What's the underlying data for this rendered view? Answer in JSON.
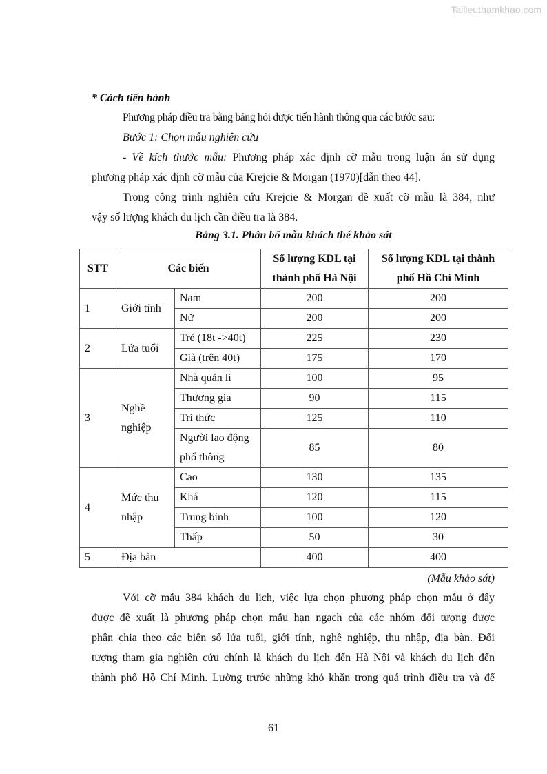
{
  "watermark": "Tailieuthamkhao.com",
  "heading": "* Cách tiến hành",
  "intro": "Phương pháp điều tra bằng bảng hỏi được tiến hành thông qua các bước sau:",
  "step1": "Bước 1: Chọn mẫu nghiên cứu",
  "size_label": "- Về kích thước mẫu:",
  "size_line1": "Phương pháp xác định cỡ mẫu trong luận án sử dụng",
  "size_line2": "phương pháp xác định cỡ mẫu của Krejcie & Morgan (1970)[dẫn theo 44].",
  "krejcie_line1": "Trong công trình nghiên cứu Krejcie & Morgan đề xuất cỡ mẫu là 384, như",
  "krejcie_line2": "vậy số lượng khách du lịch cần điều tra là 384.",
  "table": {
    "caption": "Bảng 3.1. Phân bố mẫu khách thể khảo sát",
    "headers": [
      "STT",
      "Các biến",
      "Số lượng KDL tại thành phố Hà Nội",
      "Số lượng KDL tại thành phố Hồ Chí Minh"
    ],
    "groups": [
      {
        "stt": "1",
        "name": "Giới tính",
        "rows": [
          [
            "Nam",
            "200",
            "200"
          ],
          [
            "Nữ",
            "200",
            "200"
          ]
        ]
      },
      {
        "stt": "2",
        "name": "Lứa tuổi",
        "rows": [
          [
            "Trẻ (18t ->40t)",
            "225",
            "230"
          ],
          [
            "Già (trên 40t)",
            "175",
            "170"
          ]
        ]
      },
      {
        "stt": "3",
        "name": "Nghề nghiệp",
        "rows": [
          [
            "Nhà quản lí",
            "100",
            "95"
          ],
          [
            "Thương gia",
            "90",
            "115"
          ],
          [
            "Trí thức",
            "125",
            "110"
          ],
          [
            "Người lao động phổ thông",
            "85",
            "80"
          ]
        ]
      },
      {
        "stt": "4",
        "name": "Mức thu nhập",
        "rows": [
          [
            "Cao",
            "130",
            "135"
          ],
          [
            "Khá",
            "120",
            "115"
          ],
          [
            "Trung bình",
            "100",
            "120"
          ],
          [
            "Thấp",
            "50",
            "30"
          ]
        ]
      },
      {
        "stt": "5",
        "name": "Địa bàn",
        "rows": [
          [
            "",
            "400",
            "400"
          ]
        ]
      }
    ],
    "source": "(Mẫu khảo sát)"
  },
  "para_lines": [
    "Với cỡ mẫu 384 khách du lịch, việc lựa chọn phương pháp chọn mẫu ở đây",
    "được đề xuất là phương pháp chọn mẫu hạn ngạch của các nhóm đối tượng được",
    "phân chia theo các biến số lứa tuổi, giới tính, nghề nghiệp, thu nhập, địa bàn. Đối",
    "tượng tham gia nghiên cứu chính là khách du lịch đến Hà Nội và khách du lịch đến",
    "thành phố Hồ Chí Minh. Lường trước những khó khăn trong quá trình điều tra và để"
  ],
  "page_number": "61"
}
